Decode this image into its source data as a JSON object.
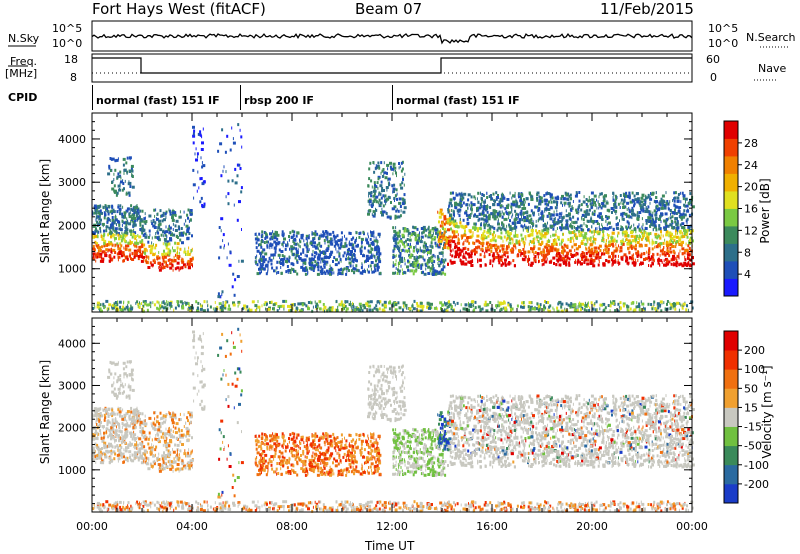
{
  "header": {
    "radar": "Fort Hays West (fitACF)",
    "beam": "Beam 07",
    "date": "11/Feb/2015"
  },
  "summary_panels": {
    "nsky_label": "N.Sky",
    "nsearch_label": "N.Search",
    "noise_ticks_left": [
      "10^5",
      "10^0"
    ],
    "noise_ticks_right": [
      "10^5",
      "10^0"
    ],
    "freq_label_line1": "Freq.",
    "freq_label_line2": "[MHz]",
    "freq_ticks": [
      "18",
      "8"
    ],
    "nave_label": "Nave",
    "nave_ticks": [
      "60",
      "0"
    ],
    "cpid_label": "CPID"
  },
  "cpid_segments": [
    {
      "label": "normal (fast) 151 IF",
      "start_hour": 0
    },
    {
      "label": "rbsp 200 IF",
      "start_hour": 6
    },
    {
      "label": "normal (fast) 151 IF",
      "start_hour": 12
    }
  ],
  "chart_data": [
    {
      "type": "heatmap",
      "panel": "power",
      "ylabel": "Slant Range [km]",
      "yticks": [
        1000,
        2000,
        3000,
        4000
      ],
      "ylim": [
        0,
        4600
      ],
      "xlim_hours": [
        0,
        24
      ],
      "colorbar": {
        "label": "Power [dB]",
        "ticks": [
          "4",
          "8",
          "12",
          "16",
          "20",
          "24",
          "28"
        ],
        "colors": [
          "#1a1aff",
          "#1f4fb8",
          "#2d6f8a",
          "#3c8a5c",
          "#7ac943",
          "#e0e020",
          "#f0b000",
          "#f08000",
          "#f04000",
          "#e00000"
        ]
      }
    },
    {
      "type": "heatmap",
      "panel": "velocity",
      "ylabel": "Slant Range [km]",
      "yticks": [
        1000,
        2000,
        3000,
        4000
      ],
      "ylim": [
        0,
        4600
      ],
      "xlim_hours": [
        0,
        24
      ],
      "xticks": [
        "00:00",
        "04:00",
        "08:00",
        "12:00",
        "16:00",
        "20:00",
        "00:00"
      ],
      "xlabel": "Time UT",
      "colorbar": {
        "label": "Velocity [m s⁻¹]",
        "ticks": [
          "200",
          "100",
          "50",
          "15",
          "-15",
          "-50",
          "-100",
          "-200"
        ],
        "colors": [
          "#1a3cc8",
          "#2a6aa0",
          "#3a8a5a",
          "#70c040",
          "#c8c8c0",
          "#f0a030",
          "#f07010",
          "#f03000",
          "#e00000"
        ]
      }
    }
  ]
}
